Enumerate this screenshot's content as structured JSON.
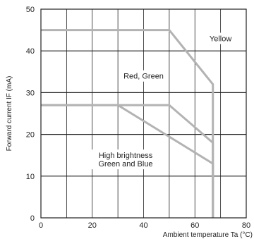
{
  "chart_data": {
    "type": "line",
    "title": "",
    "xlabel": "Ambient temperature Ta (°C)",
    "ylabel": "Forward current IF (mA)",
    "xlim": [
      0,
      80
    ],
    "ylim": [
      0,
      50
    ],
    "xticks": [
      0,
      20,
      40,
      60,
      80
    ],
    "yticks": [
      0,
      10,
      20,
      30,
      40,
      50
    ],
    "grid": true,
    "line_color": "#b3b3b3",
    "series": [
      {
        "x": [
          0,
          50,
          67,
          67
        ],
        "y": [
          45,
          45,
          32,
          0
        ]
      },
      {
        "x": [
          0,
          50,
          67,
          67
        ],
        "y": [
          27,
          27,
          18,
          0
        ]
      },
      {
        "x": [
          0,
          30,
          67,
          67
        ],
        "y": [
          27,
          27,
          13,
          0
        ]
      }
    ],
    "annotations": [
      {
        "lines": [
          "Yellow"
        ],
        "x": 70,
        "y": 43
      },
      {
        "lines": [
          "Red, Green"
        ],
        "x": 40,
        "y": 34
      },
      {
        "lines": [
          "High brightness",
          "Green and Blue"
        ],
        "x": 33,
        "y": 14
      }
    ]
  }
}
